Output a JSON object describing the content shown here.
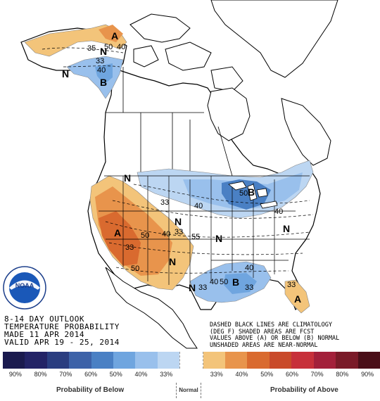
{
  "outlook": {
    "line1": "8-14 DAY OUTLOOK",
    "line2": "TEMPERATURE PROBABILITY",
    "line3": "MADE  11 APR 2014",
    "line4": "VALID  APR 19 - 25, 2014"
  },
  "notes": {
    "line1": "DASHED BLACK LINES ARE CLIMATOLOGY",
    "line2": "(DEG F) SHADED AREAS ARE FCST",
    "line3": "VALUES ABOVE (A) OR BELOW (B) NORMAL",
    "line4": "UNSHADED AREAS ARE NEAR-NORMAL"
  },
  "logo_text": "NOAA",
  "legend": {
    "colors": [
      "#1a1a4e",
      "#232366",
      "#2a3d80",
      "#3d62a8",
      "#4a80c4",
      "#6fa5df",
      "#99c0ec",
      "#bcd6f2",
      "#ffffff",
      "#f3c47a",
      "#e8944c",
      "#d96a2f",
      "#c94a2a",
      "#c7303a",
      "#a3203a",
      "#7a1a28",
      "#4a0e18"
    ],
    "ticks": [
      "90%",
      "80%",
      "70%",
      "60%",
      "50%",
      "40%",
      "33%",
      "",
      "33%",
      "40%",
      "50%",
      "60%",
      "70%",
      "80%",
      "90%"
    ],
    "below_label": "Probability of Below",
    "normal_label": "Normal",
    "above_label": "Probability of Above"
  },
  "map_labels": {
    "a_alaska": "A",
    "n_alaska": "N",
    "b_alaska": "B",
    "n_alaska_west": "N",
    "n_pnw": "N",
    "a_west": "A",
    "b_greatlakes": "B",
    "n_central": "N",
    "n_plains": "N",
    "n_east": "N",
    "n_south": "N",
    "b_gulf": "B",
    "a_florida": "A",
    "n_south_texas": "N",
    "v40a": "40",
    "v50a": "50",
    "v33a": "33",
    "v40b": "40",
    "v33b": "33",
    "v50b": "50",
    "v33c": "33",
    "v40c": "40",
    "v40d": "40",
    "v50c": "50",
    "v33d": "33",
    "v40e": "40",
    "v33e": "33",
    "v50d": "50",
    "v40f": "40",
    "v33f": "33",
    "v40g": "40",
    "v50e": "50",
    "v55": "55",
    "v35": "35",
    "v33g": "33"
  }
}
